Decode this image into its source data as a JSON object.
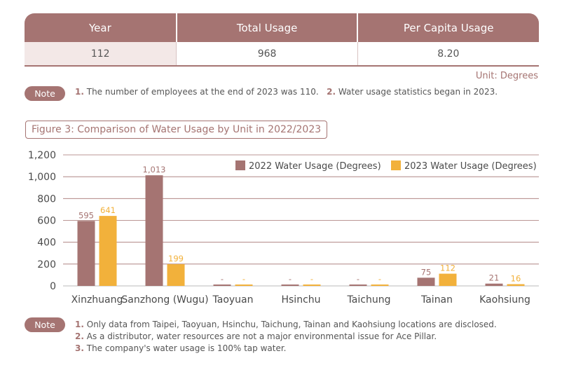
{
  "table": {
    "headers": [
      "Year",
      "Total Usage",
      "Per Capita Usage"
    ],
    "row": [
      "112",
      "968",
      "8.20"
    ],
    "unit": "Unit: Degrees"
  },
  "note1": {
    "label": "Note",
    "items": [
      {
        "num": "1.",
        "text": "The number of employees at the end of 2023 was 110."
      },
      {
        "num": "2.",
        "text": "Water usage statistics began in 2023."
      }
    ]
  },
  "figure_title": "Figure 3: Comparison of Water Usage by Unit in 2022/2023",
  "chart_data": {
    "type": "bar",
    "title": "Figure 3: Comparison of Water Usage by Unit in 2022/2023",
    "categories": [
      "Xinzhuang",
      "Sanzhong (Wugu)",
      "Taoyuan",
      "Hsinchu",
      "Taichung",
      "Tainan",
      "Kaohsiung"
    ],
    "series": [
      {
        "name": "2022 Water Usage (Degrees)",
        "values": [
          595,
          1013,
          0,
          0,
          0,
          75,
          21
        ],
        "labels": [
          "595",
          "1,013",
          "-",
          "-",
          "-",
          "75",
          "21"
        ],
        "color": "#a57472"
      },
      {
        "name": "2023 Water Usage (Degrees)",
        "values": [
          641,
          199,
          0,
          0,
          0,
          112,
          16
        ],
        "labels": [
          "641",
          "199",
          "-",
          "-",
          "-",
          "112",
          "16"
        ],
        "color": "#f2b13b"
      }
    ],
    "ylim": [
      0,
      1200
    ],
    "yticks": [
      "0",
      "200",
      "400",
      "600",
      "800",
      "1,000",
      "1,200"
    ],
    "ytick_values": [
      0,
      200,
      400,
      600,
      800,
      1000,
      1200
    ],
    "grid": true,
    "legend_position": "top-right"
  },
  "note2": {
    "label": "Note",
    "items": [
      {
        "num": "1.",
        "text": "Only data from Taipei, Taoyuan, Hsinchu, Taichung, Tainan and Kaohsiung locations are disclosed."
      },
      {
        "num": "2.",
        "text": "As a distributor, water resources are not a major environmental issue for Ace Pillar."
      },
      {
        "num": "3.",
        "text": "The company's water usage is 100% tap water."
      }
    ]
  }
}
